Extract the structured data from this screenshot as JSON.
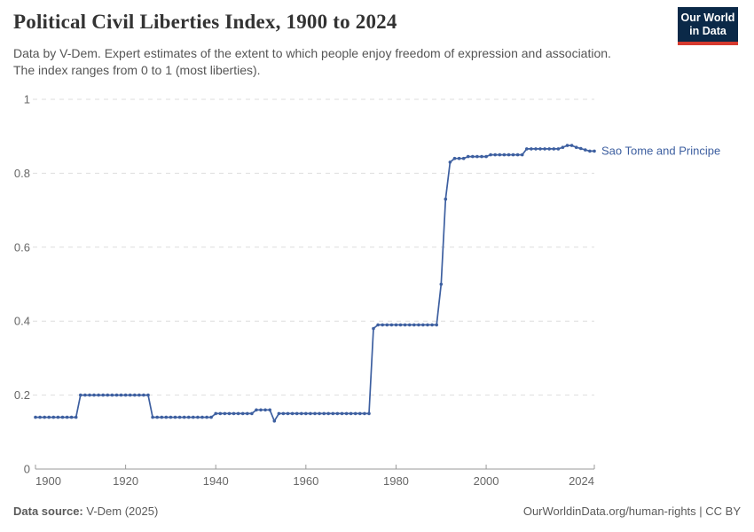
{
  "header": {
    "title": "Political Civil Liberties Index, 1900 to 2024",
    "subtitle": {
      "lines": [
        "Data by V-Dem. Expert estimates of the extent to which people enjoy freedom of expression and association.",
        "The index ranges from 0 to 1 (most liberties)."
      ]
    },
    "logo": {
      "line1": "Our World",
      "line2": "in Data"
    }
  },
  "footer": {
    "source_label": "Data source:",
    "source_value": " V-Dem (2025)",
    "link": "OurWorldinData.org/human-rights | CC BY"
  },
  "colors": {
    "line": "#3d5fa0",
    "entity_label": "#3d5fa0",
    "logo_bg": "#0b2948",
    "logo_accent": "#d63a2f",
    "grid": "#dedede",
    "axis": "#9a9a9a",
    "tick_label": "#676767",
    "title": "#333333",
    "subtitle": "#555555",
    "footer": "#5b5b5b"
  },
  "chart_data": {
    "type": "line",
    "title": "Political Civil Liberties Index, 1900 to 2024",
    "xlabel": "",
    "ylabel": "",
    "x_range": [
      1900,
      2024
    ],
    "ylim": [
      0,
      1
    ],
    "x_ticks": [
      1900,
      1920,
      1940,
      1960,
      1980,
      2000,
      2024
    ],
    "y_ticks": [
      0,
      0.2,
      0.4,
      0.6,
      0.8,
      1
    ],
    "grid": "horizontal-dashed",
    "legend": "entity-label-right-of-line",
    "marker": "point-per-year",
    "series": [
      {
        "name": "Sao Tome and Principe",
        "color": "#3d5fa0",
        "x_start": 1900,
        "x_step": 1,
        "values": [
          0.14,
          0.14,
          0.14,
          0.14,
          0.14,
          0.14,
          0.14,
          0.14,
          0.14,
          0.14,
          0.2,
          0.2,
          0.2,
          0.2,
          0.2,
          0.2,
          0.2,
          0.2,
          0.2,
          0.2,
          0.2,
          0.2,
          0.2,
          0.2,
          0.2,
          0.2,
          0.14,
          0.14,
          0.14,
          0.14,
          0.14,
          0.14,
          0.14,
          0.14,
          0.14,
          0.14,
          0.14,
          0.14,
          0.14,
          0.14,
          0.15,
          0.15,
          0.15,
          0.15,
          0.15,
          0.15,
          0.15,
          0.15,
          0.15,
          0.16,
          0.16,
          0.16,
          0.16,
          0.13,
          0.15,
          0.15,
          0.15,
          0.15,
          0.15,
          0.15,
          0.15,
          0.15,
          0.15,
          0.15,
          0.15,
          0.15,
          0.15,
          0.15,
          0.15,
          0.15,
          0.15,
          0.15,
          0.15,
          0.15,
          0.15,
          0.38,
          0.39,
          0.39,
          0.39,
          0.39,
          0.39,
          0.39,
          0.39,
          0.39,
          0.39,
          0.39,
          0.39,
          0.39,
          0.39,
          0.39,
          0.5,
          0.73,
          0.83,
          0.84,
          0.84,
          0.84,
          0.845,
          0.845,
          0.845,
          0.845,
          0.845,
          0.85,
          0.85,
          0.85,
          0.85,
          0.85,
          0.85,
          0.85,
          0.85,
          0.866,
          0.866,
          0.866,
          0.866,
          0.866,
          0.866,
          0.866,
          0.866,
          0.87,
          0.875,
          0.875,
          0.87,
          0.867,
          0.863,
          0.86,
          0.86
        ]
      }
    ]
  }
}
